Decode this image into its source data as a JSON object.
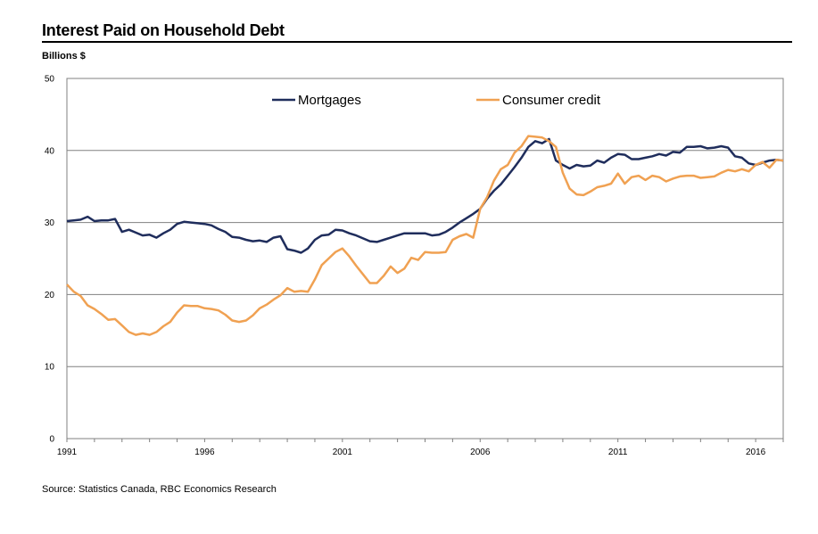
{
  "chart_data": {
    "type": "line",
    "title": "Interest Paid on Household Debt",
    "ylabel": "Billions $",
    "xlabel": "",
    "source": "Source: Statistics Canada, RBC Economics Research",
    "xlim": [
      1991,
      2017
    ],
    "ylim": [
      0,
      50
    ],
    "yticks": [
      0,
      10,
      20,
      30,
      40,
      50
    ],
    "xticks": [
      1991,
      1996,
      2001,
      2006,
      2011,
      2016
    ],
    "grid": "horizontal",
    "legend_position": "top-inside",
    "series": [
      {
        "name": "Mortgages",
        "color": "#1f2d5c",
        "x": [
          1991.0,
          1991.25,
          1991.5,
          1991.75,
          1992.0,
          1992.25,
          1992.5,
          1992.75,
          1993.0,
          1993.25,
          1993.5,
          1993.75,
          1994.0,
          1994.25,
          1994.5,
          1994.75,
          1995.0,
          1995.25,
          1995.5,
          1995.75,
          1996.0,
          1996.25,
          1996.5,
          1996.75,
          1997.0,
          1997.25,
          1997.5,
          1997.75,
          1998.0,
          1998.25,
          1998.5,
          1998.75,
          1999.0,
          1999.25,
          1999.5,
          1999.75,
          2000.0,
          2000.25,
          2000.5,
          2000.75,
          2001.0,
          2001.25,
          2001.5,
          2001.75,
          2002.0,
          2002.25,
          2002.5,
          2002.75,
          2003.0,
          2003.25,
          2003.5,
          2003.75,
          2004.0,
          2004.25,
          2004.5,
          2004.75,
          2005.0,
          2005.25,
          2005.5,
          2005.75,
          2006.0,
          2006.25,
          2006.5,
          2006.75,
          2007.0,
          2007.25,
          2007.5,
          2007.75,
          2008.0,
          2008.25,
          2008.5,
          2008.75,
          2009.0,
          2009.25,
          2009.5,
          2009.75,
          2010.0,
          2010.25,
          2010.5,
          2010.75,
          2011.0,
          2011.25,
          2011.5,
          2011.75,
          2012.0,
          2012.25,
          2012.5,
          2012.75,
          2013.0,
          2013.25,
          2013.5,
          2013.75,
          2014.0,
          2014.25,
          2014.5,
          2014.75,
          2015.0,
          2015.25,
          2015.5,
          2015.75,
          2016.0,
          2016.25,
          2016.5,
          2016.75,
          2017.0
        ],
        "y": [
          30.2,
          30.3,
          30.4,
          30.8,
          30.2,
          30.3,
          30.3,
          30.5,
          28.7,
          29.0,
          28.6,
          28.2,
          28.3,
          27.9,
          28.5,
          29.0,
          29.8,
          30.1,
          30.0,
          29.9,
          29.8,
          29.6,
          29.1,
          28.7,
          28.0,
          27.9,
          27.6,
          27.4,
          27.5,
          27.3,
          27.9,
          28.1,
          26.3,
          26.1,
          25.8,
          26.4,
          27.6,
          28.2,
          28.3,
          29.0,
          28.9,
          28.5,
          28.2,
          27.8,
          27.4,
          27.3,
          27.6,
          27.9,
          28.2,
          28.5,
          28.5,
          28.5,
          28.5,
          28.2,
          28.3,
          28.7,
          29.3,
          30.0,
          30.6,
          31.2,
          31.9,
          33.3,
          34.4,
          35.3,
          36.5,
          37.7,
          39.0,
          40.5,
          41.3,
          41.0,
          41.6,
          38.6,
          38.0,
          37.5,
          38.0,
          37.8,
          37.9,
          38.6,
          38.3,
          39.0,
          39.5,
          39.4,
          38.8,
          38.8,
          39.0,
          39.2,
          39.5,
          39.3,
          39.8,
          39.7,
          40.5,
          40.5,
          40.6,
          40.3,
          40.4,
          40.6,
          40.4,
          39.2,
          39.0,
          38.2,
          38.0,
          38.3,
          38.6,
          38.7,
          38.6
        ]
      },
      {
        "name": "Consumer credit",
        "color": "#f0a152",
        "x": [
          1991.0,
          1991.25,
          1991.5,
          1991.75,
          1992.0,
          1992.25,
          1992.5,
          1992.75,
          1993.0,
          1993.25,
          1993.5,
          1993.75,
          1994.0,
          1994.25,
          1994.5,
          1994.75,
          1995.0,
          1995.25,
          1995.5,
          1995.75,
          1996.0,
          1996.25,
          1996.5,
          1996.75,
          1997.0,
          1997.25,
          1997.5,
          1997.75,
          1998.0,
          1998.25,
          1998.5,
          1998.75,
          1999.0,
          1999.25,
          1999.5,
          1999.75,
          2000.0,
          2000.25,
          2000.5,
          2000.75,
          2001.0,
          2001.25,
          2001.5,
          2001.75,
          2002.0,
          2002.25,
          2002.5,
          2002.75,
          2003.0,
          2003.25,
          2003.5,
          2003.75,
          2004.0,
          2004.25,
          2004.5,
          2004.75,
          2005.0,
          2005.25,
          2005.5,
          2005.75,
          2006.0,
          2006.25,
          2006.5,
          2006.75,
          2007.0,
          2007.25,
          2007.5,
          2007.75,
          2008.0,
          2008.25,
          2008.5,
          2008.75,
          2009.0,
          2009.25,
          2009.5,
          2009.75,
          2010.0,
          2010.25,
          2010.5,
          2010.75,
          2011.0,
          2011.25,
          2011.5,
          2011.75,
          2012.0,
          2012.25,
          2012.5,
          2012.75,
          2013.0,
          2013.25,
          2013.5,
          2013.75,
          2014.0,
          2014.25,
          2014.5,
          2014.75,
          2015.0,
          2015.25,
          2015.5,
          2015.75,
          2016.0,
          2016.25,
          2016.5,
          2016.75,
          2017.0
        ],
        "y": [
          21.4,
          20.4,
          19.8,
          18.5,
          18.0,
          17.3,
          16.5,
          16.6,
          15.7,
          14.8,
          14.4,
          14.6,
          14.4,
          14.8,
          15.6,
          16.2,
          17.5,
          18.5,
          18.4,
          18.4,
          18.1,
          18.0,
          17.8,
          17.2,
          16.4,
          16.2,
          16.4,
          17.1,
          18.1,
          18.6,
          19.3,
          19.9,
          20.9,
          20.4,
          20.5,
          20.4,
          22.1,
          24.1,
          25.0,
          25.9,
          26.4,
          25.3,
          24.0,
          22.8,
          21.6,
          21.6,
          22.6,
          23.9,
          23.0,
          23.6,
          25.1,
          24.8,
          25.9,
          25.8,
          25.8,
          25.9,
          27.6,
          28.1,
          28.4,
          27.9,
          31.9,
          33.5,
          35.8,
          37.4,
          38.0,
          39.7,
          40.6,
          42.0,
          41.9,
          41.8,
          41.3,
          40.5,
          36.9,
          34.7,
          33.9,
          33.8,
          34.3,
          34.9,
          35.1,
          35.4,
          36.8,
          35.4,
          36.3,
          36.5,
          35.9,
          36.5,
          36.3,
          35.7,
          36.1,
          36.4,
          36.5,
          36.5,
          36.2,
          36.3,
          36.4,
          36.9,
          37.3,
          37.1,
          37.4,
          37.1,
          38.0,
          38.4,
          37.6,
          38.7,
          38.6
        ]
      }
    ]
  }
}
